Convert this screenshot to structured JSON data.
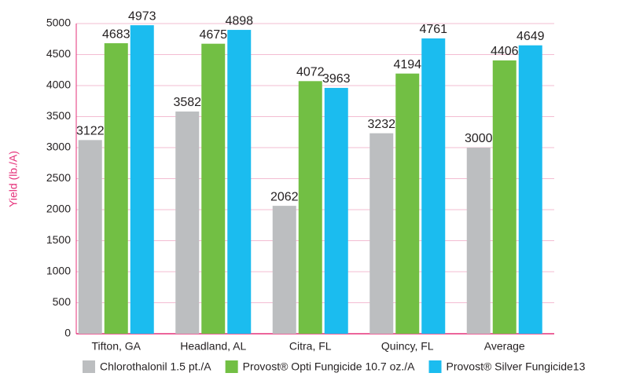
{
  "chart_data": {
    "type": "bar",
    "ylabel": "Yield (lb./A)",
    "categories": [
      "Tifton, GA",
      "Headland, AL",
      "Citra, FL",
      "Quincy, FL",
      "Average"
    ],
    "series": [
      {
        "name": "Chlorothalonil 1.5 pt./A",
        "color": "#bcbec0",
        "values": [
          3122,
          3582,
          2062,
          3232,
          3000
        ]
      },
      {
        "name": "Provost® Opti Fungicide 10.7 oz./A",
        "color": "#72bf44",
        "values": [
          4683,
          4675,
          4072,
          4194,
          4406
        ]
      },
      {
        "name": "Provost® Silver Fungicide13",
        "color": "#1bbcef",
        "values": [
          4973,
          4898,
          3963,
          4761,
          4649
        ]
      }
    ],
    "ylim": [
      0,
      5000
    ],
    "yticks": [
      0,
      500,
      1000,
      1500,
      2000,
      2500,
      3000,
      3500,
      4000,
      4500,
      5000
    ],
    "grid": true,
    "legend": "bottom"
  }
}
